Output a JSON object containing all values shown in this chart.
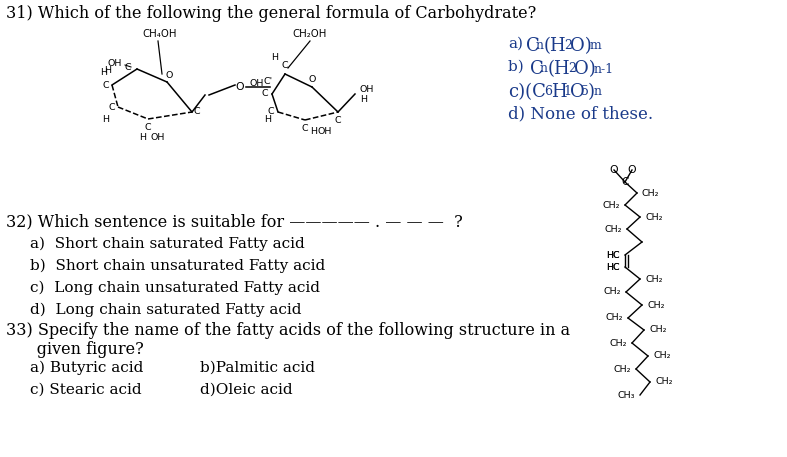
{
  "background_color": "#ffffff",
  "black": "#000000",
  "blue": "#1a3a8a",
  "q31": "31) Which of the following the general formula of Carbohydrate?",
  "q31_opts": [
    [
      "a)C",
      "n",
      "(H",
      "2",
      "O)",
      "m",
      ""
    ],
    [
      "b) C",
      "n",
      "(H",
      "2",
      "O)",
      "n-1",
      ""
    ],
    [
      "c)(C",
      "6",
      "H",
      "1",
      "O",
      "5",
      ")n"
    ],
    [
      "d) None of these.",
      "",
      "",
      "",
      "",
      "",
      ""
    ]
  ],
  "q32": "32) Which sentence is suitable for ————— . — — —  ?",
  "q32_opts": [
    "a)  Short chain saturated Fatty acid",
    "b)  Short chain unsaturated Fatty acid",
    "c)  Long chain unsaturated Fatty acid",
    "d)  Long chain saturated Fatty acid"
  ],
  "q33": "33) Specify the name of the fatty acids of the following structure in a",
  "q33b": "      given figure?",
  "q33_opts_left": [
    "a) Butyric acid",
    "c) Stearic acid"
  ],
  "q33_opts_right": [
    "b)Palmitic acid",
    "d)Oleic acid"
  ],
  "font_q": 11.5,
  "font_opt": 11
}
